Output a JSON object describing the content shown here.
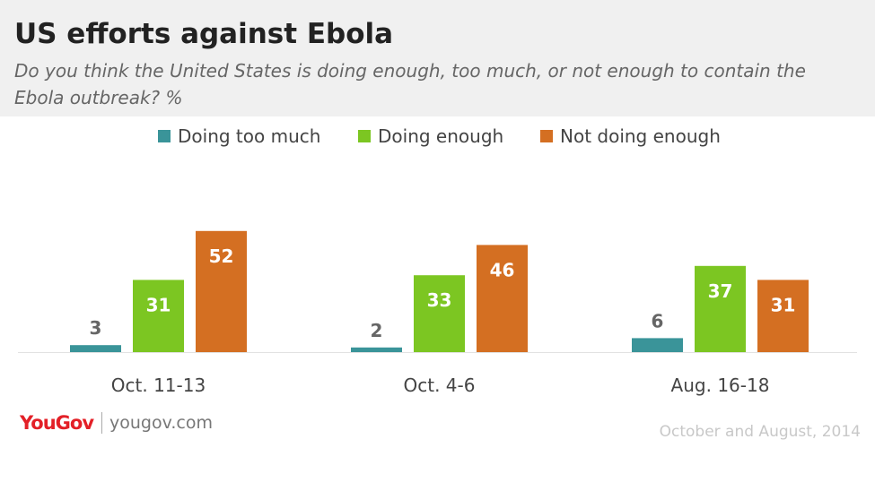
{
  "title": "US efforts against Ebola",
  "subtitle": "Do you think the United States is doing enough, too much, or not enough to contain the Ebola outbreak? %",
  "legend": [
    {
      "label": "Doing too much",
      "color": "#3a9499"
    },
    {
      "label": "Doing enough",
      "color": "#7cc622"
    },
    {
      "label": "Not doing enough",
      "color": "#d46f22"
    }
  ],
  "chart_data": {
    "type": "bar",
    "categories": [
      "Oct. 11-13",
      "Oct. 4-6",
      "Aug. 16-18"
    ],
    "series": [
      {
        "name": "Doing too much",
        "values": [
          3,
          2,
          6
        ],
        "color": "#3a9499"
      },
      {
        "name": "Doing enough",
        "values": [
          31,
          33,
          37
        ],
        "color": "#7cc622"
      },
      {
        "name": "Not doing enough",
        "values": [
          52,
          46,
          31
        ],
        "color": "#d46f22"
      }
    ],
    "ylim": [
      0,
      52
    ],
    "grid": false,
    "legend_position": "top"
  },
  "branding": {
    "logo": "YouGov",
    "site": "yougov.com"
  },
  "footnote": "October and August, 2014"
}
